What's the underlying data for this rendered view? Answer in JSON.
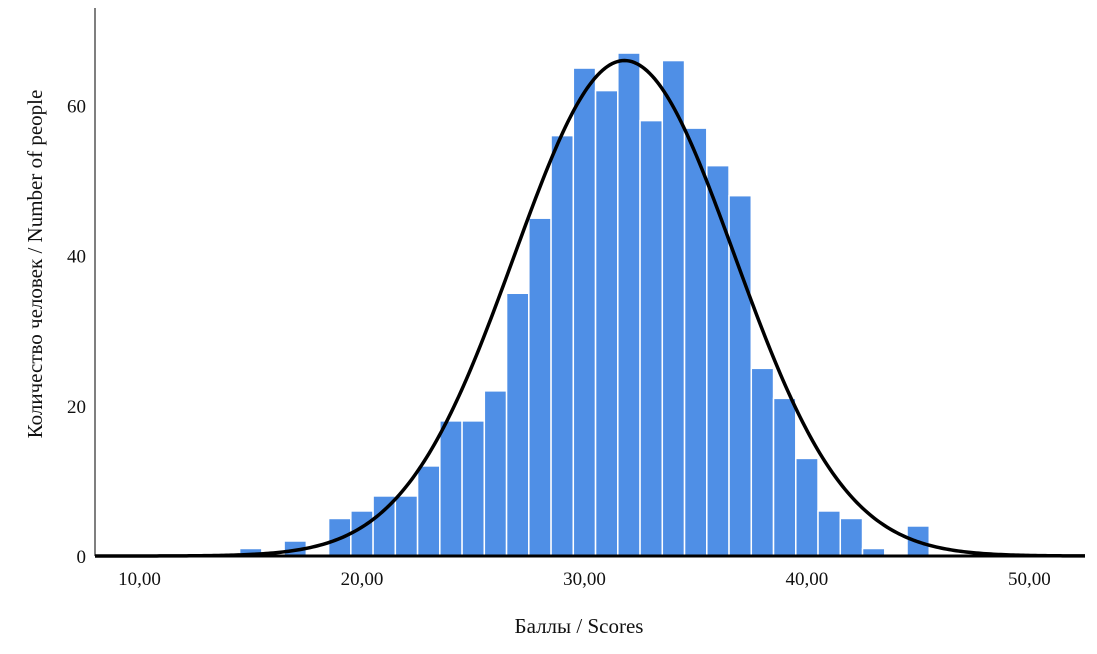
{
  "chart_data": {
    "type": "bar",
    "subtype": "histogram",
    "title": "",
    "xlabel": "Баллы / Scores",
    "ylabel": "Количество человек / Number of people",
    "xlim": [
      8,
      52.5
    ],
    "ylim": [
      0,
      73
    ],
    "x_ticks": [
      10,
      20,
      30,
      40,
      50
    ],
    "x_tick_labels": [
      "10,00",
      "20,00",
      "30,00",
      "40,00",
      "50,00"
    ],
    "y_ticks": [
      0,
      20,
      40,
      60
    ],
    "y_tick_labels": [
      "0",
      "20",
      "40",
      "60"
    ],
    "bin_width": 1,
    "bins": [
      {
        "start": 14.5,
        "end": 15.5,
        "count": 1
      },
      {
        "start": 15.5,
        "end": 16.5,
        "count": 0
      },
      {
        "start": 16.5,
        "end": 17.5,
        "count": 2
      },
      {
        "start": 17.5,
        "end": 18.5,
        "count": 0
      },
      {
        "start": 18.5,
        "end": 19.5,
        "count": 5
      },
      {
        "start": 19.5,
        "end": 20.5,
        "count": 6
      },
      {
        "start": 20.5,
        "end": 21.5,
        "count": 8
      },
      {
        "start": 21.5,
        "end": 22.5,
        "count": 8
      },
      {
        "start": 22.5,
        "end": 23.5,
        "count": 12
      },
      {
        "start": 23.5,
        "end": 24.5,
        "count": 18
      },
      {
        "start": 24.5,
        "end": 25.5,
        "count": 18
      },
      {
        "start": 25.5,
        "end": 26.5,
        "count": 22
      },
      {
        "start": 26.5,
        "end": 27.5,
        "count": 35
      },
      {
        "start": 27.5,
        "end": 28.5,
        "count": 45
      },
      {
        "start": 28.5,
        "end": 29.5,
        "count": 56
      },
      {
        "start": 29.5,
        "end": 30.5,
        "count": 65
      },
      {
        "start": 30.5,
        "end": 31.5,
        "count": 62
      },
      {
        "start": 31.5,
        "end": 32.5,
        "count": 67
      },
      {
        "start": 32.5,
        "end": 33.5,
        "count": 58
      },
      {
        "start": 33.5,
        "end": 34.5,
        "count": 66
      },
      {
        "start": 34.5,
        "end": 35.5,
        "count": 57
      },
      {
        "start": 35.5,
        "end": 36.5,
        "count": 52
      },
      {
        "start": 36.5,
        "end": 37.5,
        "count": 48
      },
      {
        "start": 37.5,
        "end": 38.5,
        "count": 25
      },
      {
        "start": 38.5,
        "end": 39.5,
        "count": 21
      },
      {
        "start": 39.5,
        "end": 40.5,
        "count": 13
      },
      {
        "start": 40.5,
        "end": 41.5,
        "count": 6
      },
      {
        "start": 41.5,
        "end": 42.5,
        "count": 5
      },
      {
        "start": 42.5,
        "end": 43.5,
        "count": 1
      },
      {
        "start": 43.5,
        "end": 44.5,
        "count": 0
      },
      {
        "start": 44.5,
        "end": 45.5,
        "count": 4
      }
    ],
    "normal_curve": {
      "mean": 31.8,
      "sd": 4.95,
      "peak": 66
    },
    "grid": false,
    "legend": "none",
    "colors": {
      "bar_fill": "#4f8fe6",
      "bar_edge": "#ffffff",
      "curve": "#000000",
      "axis": "#555555",
      "baseline": "#000000"
    }
  }
}
